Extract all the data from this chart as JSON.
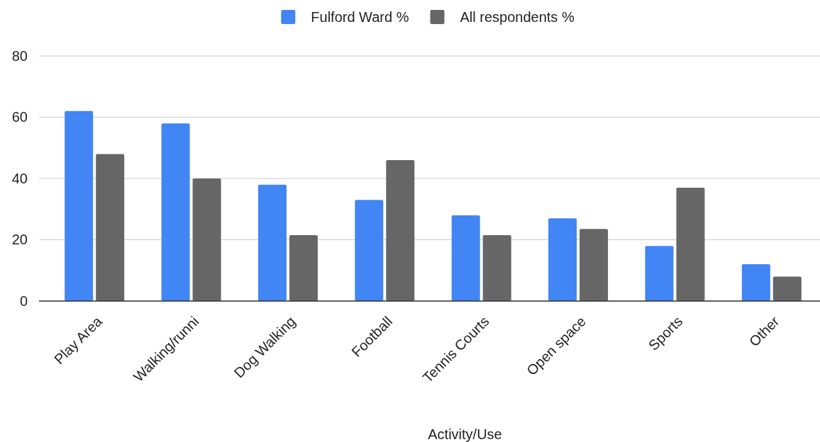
{
  "chart_data": {
    "type": "bar",
    "xlabel": "Activity/Use",
    "categories": [
      "Play Area",
      "Walking/runni",
      "Dog Walking",
      "Football",
      "Tennis Courts",
      "Open space",
      "Sports",
      "Other"
    ],
    "series": [
      {
        "name": "Fulford Ward %",
        "color": "#4285f4",
        "values": [
          62,
          58,
          38,
          33,
          28,
          27,
          18,
          12
        ]
      },
      {
        "name": "All respondents %",
        "color": "#666666",
        "values": [
          48,
          40,
          21.5,
          46,
          21.5,
          23.5,
          37,
          8
        ]
      }
    ],
    "ylim": [
      0,
      80
    ],
    "yticks": [
      0,
      20,
      40,
      60,
      80
    ],
    "grid": "y",
    "legend": "top"
  }
}
